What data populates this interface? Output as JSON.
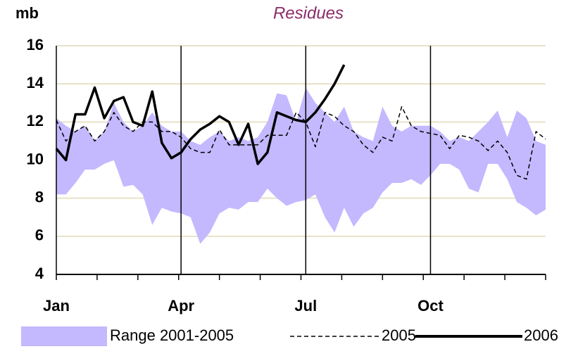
{
  "chart_data": {
    "type": "range-line",
    "title": "Residues",
    "y_label": "mb",
    "categories": [
      "Jan",
      null,
      null,
      null,
      null,
      null,
      null,
      null,
      null,
      null,
      null,
      null,
      null,
      "Apr",
      null,
      null,
      null,
      null,
      null,
      null,
      null,
      null,
      null,
      null,
      null,
      null,
      "Jul",
      null,
      null,
      null,
      null,
      null,
      null,
      null,
      null,
      null,
      null,
      null,
      null,
      "Oct",
      null,
      null,
      null,
      null,
      null,
      null,
      null,
      null,
      null,
      null,
      null,
      null
    ],
    "ylim": [
      4,
      16
    ],
    "yticks": [
      4,
      6,
      8,
      10,
      12,
      14,
      16
    ],
    "grid": true,
    "series": [
      {
        "name": "Range 2001-2005",
        "color": "#c4b8ff",
        "low": [
          8.2,
          8.2,
          8.8,
          9.5,
          9.5,
          9.8,
          10.0,
          8.6,
          8.7,
          8.2,
          6.6,
          7.5,
          7.3,
          7.2,
          7.0,
          5.6,
          6.2,
          7.2,
          7.5,
          7.4,
          7.8,
          7.8,
          8.5,
          8.0,
          7.6,
          7.8,
          7.9,
          8.2,
          7.0,
          6.2,
          7.5,
          6.5,
          7.2,
          7.5,
          8.3,
          8.8,
          8.8,
          9.0,
          8.7,
          9.2,
          9.8,
          9.8,
          9.5,
          8.5,
          8.3,
          9.8,
          9.8,
          9.0,
          7.8,
          7.5,
          7.1,
          7.4
        ],
        "high": [
          12.2,
          11.8,
          11.5,
          11.8,
          11.0,
          11.5,
          13.0,
          12.0,
          11.5,
          11.8,
          12.5,
          11.8,
          11.5,
          11.5,
          11.0,
          10.8,
          11.2,
          11.5,
          11.0,
          11.2,
          11.0,
          11.2,
          12.0,
          13.5,
          13.4,
          12.0,
          13.8,
          13.0,
          12.5,
          12.0,
          12.8,
          11.5,
          11.2,
          11.0,
          12.8,
          11.8,
          11.5,
          11.8,
          11.8,
          11.8,
          11.5,
          11.0,
          11.2,
          11.0,
          11.5,
          12.0,
          12.6,
          11.2,
          12.6,
          12.2,
          11.0,
          10.8
        ]
      },
      {
        "name": "2005",
        "color": "#000000",
        "dash": true,
        "values": [
          12.1,
          11.0,
          11.5,
          11.8,
          11.0,
          11.5,
          12.5,
          11.8,
          11.5,
          12.0,
          12.0,
          11.5,
          11.5,
          11.2,
          10.6,
          10.4,
          10.4,
          11.6,
          10.8,
          10.8,
          10.8,
          10.8,
          11.3,
          11.3,
          11.3,
          12.5,
          12.0,
          10.7,
          12.5,
          12.3,
          11.8,
          11.5,
          10.8,
          10.4,
          11.2,
          11.0,
          12.8,
          11.8,
          11.5,
          11.4,
          11.3,
          10.6,
          11.3,
          11.2,
          11.0,
          10.5,
          11.0,
          10.4,
          9.2,
          9.0,
          11.5,
          11.1
        ]
      },
      {
        "name": "2006",
        "color": "#000000",
        "dash": false,
        "values": [
          10.6,
          10.0,
          12.4,
          12.4,
          13.8,
          12.2,
          13.1,
          13.3,
          12.0,
          11.8,
          13.6,
          10.9,
          10.1,
          10.4,
          11.1,
          11.6,
          11.9,
          12.3,
          12.0,
          10.8,
          11.9,
          9.8,
          10.4,
          12.5,
          12.3,
          12.1,
          12.0,
          12.5,
          13.2,
          14.0,
          15.0,
          null,
          null,
          null,
          null,
          null,
          null,
          null,
          null,
          null,
          null,
          null,
          null,
          null,
          null,
          null,
          null,
          null,
          null,
          null,
          null,
          null
        ]
      }
    ]
  }
}
